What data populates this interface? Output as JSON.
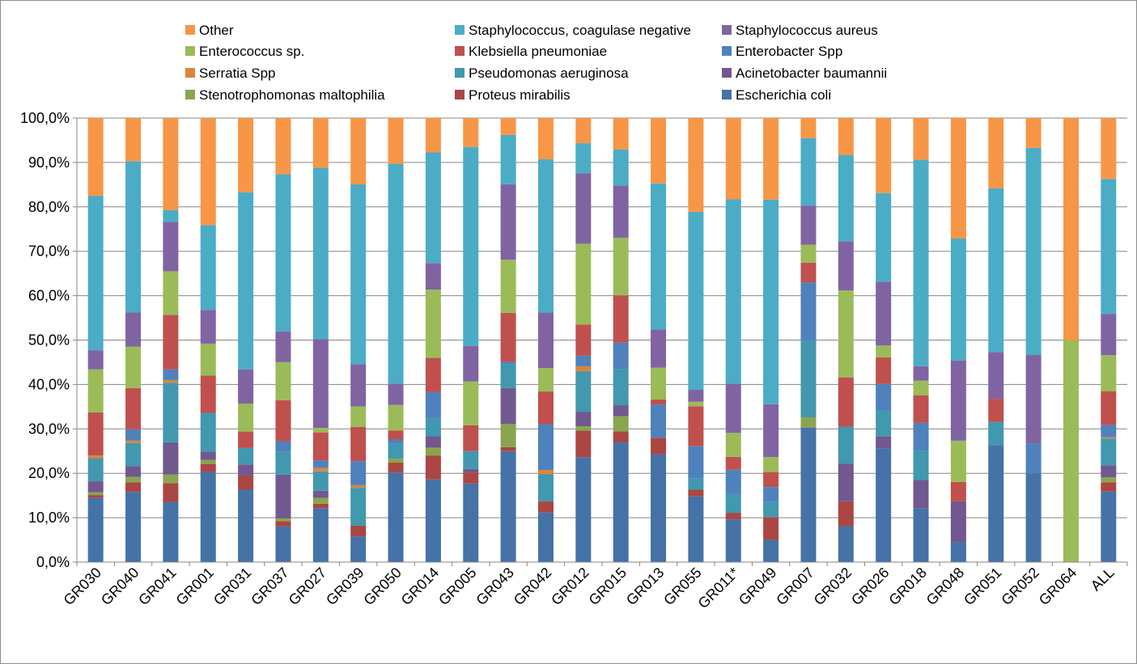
{
  "chart_data": {
    "type": "bar",
    "stacked": true,
    "percent_stacked": true,
    "categories": [
      "GR030",
      "GR040",
      "GR041",
      "GR001",
      "GR031",
      "GR037",
      "GR027",
      "GR039",
      "GR050",
      "GR014",
      "GR005",
      "GR043",
      "GR042",
      "GR012",
      "GR015",
      "GR013",
      "GR055",
      "GR011*",
      "GR049",
      "GR007",
      "GR032",
      "GR026",
      "GR018",
      "GR048",
      "GR051",
      "GR052",
      "GR064",
      "ALL"
    ],
    "y_ticks": [
      "0,0%",
      "10,0%",
      "20,0%",
      "30,0%",
      "40,0%",
      "50,0%",
      "60,0%",
      "70,0%",
      "80,0%",
      "90,0%",
      "100,0%"
    ],
    "ylim": [
      0,
      100
    ],
    "grid": "horizontal",
    "legend_placement": "top",
    "legend_order": [
      "Other",
      "Staphylococcus, coagulase negative",
      "Staphylococcus aureus",
      "Enterococcus sp.",
      "Klebsiella pneumoniae",
      "Enterobacter Spp",
      "Serratia Spp",
      "Pseudomonas aeruginosa",
      "Acinetobacter baumannii",
      "Stenotrophomonas maltophilia",
      "Proteus mirabilis",
      "Escherichia coli"
    ],
    "series": [
      {
        "name": "Escherichia coli",
        "color": "#4572a7",
        "values": [
          14.5,
          15.8,
          13.5,
          20.3,
          16.3,
          8.0,
          12.2,
          5.8,
          20.2,
          19.0,
          17.7,
          25.0,
          11.2,
          23.8,
          27.0,
          24.3,
          14.8,
          9.6,
          5.2,
          30.3,
          8.1,
          25.8,
          12.3,
          4.4,
          26.3,
          20.0,
          0,
          15.9
        ]
      },
      {
        "name": "Proteus mirabilis",
        "color": "#aa4643",
        "values": [
          0.6,
          2.2,
          4.3,
          1.8,
          3.2,
          1.2,
          1.0,
          2.4,
          2.2,
          5.5,
          2.5,
          0.9,
          2.5,
          6.0,
          2.5,
          3.7,
          1.5,
          1.5,
          5.3,
          0,
          5.6,
          0,
          0,
          0,
          0,
          0,
          0,
          2.1
        ]
      },
      {
        "name": "Stenotrophomonas maltophilia",
        "color": "#89a54e",
        "values": [
          0.6,
          1.2,
          1.9,
          0.9,
          0,
          0.6,
          1.3,
          0,
          0.9,
          1.8,
          0,
          5.2,
          0,
          1.0,
          3.4,
          0,
          0,
          0,
          0,
          2.3,
          0,
          0,
          0,
          0,
          0,
          0,
          0,
          1.1
        ]
      },
      {
        "name": "Acinetobacter baumannii",
        "color": "#71588f",
        "values": [
          2.5,
          2.4,
          7.3,
          1.9,
          2.5,
          9.8,
          1.6,
          0,
          0,
          2.6,
          0.8,
          8.1,
          0,
          3.3,
          2.5,
          0,
          0,
          0,
          0,
          0,
          8.5,
          2.7,
          6.4,
          9.3,
          0,
          0,
          0,
          2.7
        ]
      },
      {
        "name": "Pseudomonas aeruginosa",
        "color": "#4198af",
        "values": [
          5.2,
          5.2,
          13.4,
          8.7,
          3.7,
          5.1,
          4.4,
          8.5,
          3.4,
          4.1,
          4.0,
          5.4,
          6.1,
          9.2,
          8.1,
          0,
          2.5,
          4.3,
          3.5,
          17.3,
          8.3,
          5.9,
          6.7,
          0,
          5.2,
          0,
          0,
          6.0
        ]
      },
      {
        "name": "Serratia Spp",
        "color": "#db843d",
        "values": [
          0.6,
          0.6,
          0.6,
          0,
          0,
          0,
          0.8,
          0.6,
          0,
          0,
          0,
          0,
          1.0,
          1.1,
          0,
          0,
          0,
          0,
          0,
          0,
          0,
          0,
          0,
          0,
          0,
          0,
          0,
          0.3
        ]
      },
      {
        "name": "Enterobacter Spp",
        "color": "#4f81bd",
        "values": [
          0,
          2.5,
          2.4,
          0,
          0,
          2.4,
          1.7,
          5.4,
          0.9,
          6.1,
          0,
          0.5,
          10.3,
          2.4,
          6.0,
          7.5,
          7.3,
          5.4,
          3.5,
          13.1,
          0,
          6.0,
          6.3,
          0,
          0,
          6.7,
          0,
          2.8
        ]
      },
      {
        "name": "Klebsiella pneumoniae",
        "color": "#c0504d",
        "values": [
          9.7,
          9.3,
          12.3,
          8.4,
          3.7,
          9.2,
          6.3,
          7.7,
          2.0,
          7.8,
          5.8,
          11.0,
          7.4,
          7.1,
          10.7,
          1.1,
          9.0,
          2.9,
          3.5,
          4.4,
          11.1,
          6.0,
          6.3,
          4.4,
          5.2,
          0,
          0,
          7.6
        ]
      },
      {
        "name": "Enterococcus sp.",
        "color": "#9bbb59",
        "values": [
          9.7,
          9.3,
          9.8,
          7.2,
          6.3,
          8.5,
          1.0,
          4.6,
          5.8,
          15.7,
          9.9,
          12.0,
          5.3,
          18.3,
          13.0,
          7.2,
          1.0,
          5.4,
          3.5,
          4.1,
          19.6,
          2.7,
          3.3,
          9.3,
          0,
          0,
          50.0,
          8.1
        ]
      },
      {
        "name": "Staphylococcus aureus",
        "color": "#8064a2",
        "values": [
          4.3,
          7.7,
          11.1,
          7.6,
          7.7,
          6.9,
          20.1,
          9.5,
          4.8,
          6.1,
          8.0,
          17.0,
          12.5,
          16.0,
          11.8,
          8.6,
          2.7,
          11.1,
          12.3,
          8.8,
          11.0,
          14.5,
          3.3,
          18.1,
          10.5,
          20.0,
          0,
          9.3
        ]
      },
      {
        "name": "Staphylococcus, coagulase negative",
        "color": "#4bacc6",
        "values": [
          34.8,
          34.1,
          2.7,
          19.1,
          39.9,
          35.2,
          38.7,
          40.4,
          49.5,
          25.4,
          44.8,
          11.1,
          34.6,
          6.8,
          8.1,
          32.9,
          40.1,
          41.5,
          47.7,
          15.2,
          19.5,
          20.1,
          47.0,
          27.5,
          36.8,
          46.6,
          0,
          30.4
        ]
      },
      {
        "name": "Other",
        "color": "#f79646",
        "values": [
          17.5,
          9.7,
          20.7,
          24.1,
          16.7,
          12.6,
          11.2,
          14.9,
          10.3,
          7.9,
          6.5,
          3.8,
          9.3,
          5.7,
          7.1,
          14.7,
          21.1,
          18.3,
          19.0,
          4.5,
          8.3,
          17.0,
          9.5,
          27.2,
          15.8,
          6.7,
          50.0,
          13.7
        ]
      }
    ]
  }
}
